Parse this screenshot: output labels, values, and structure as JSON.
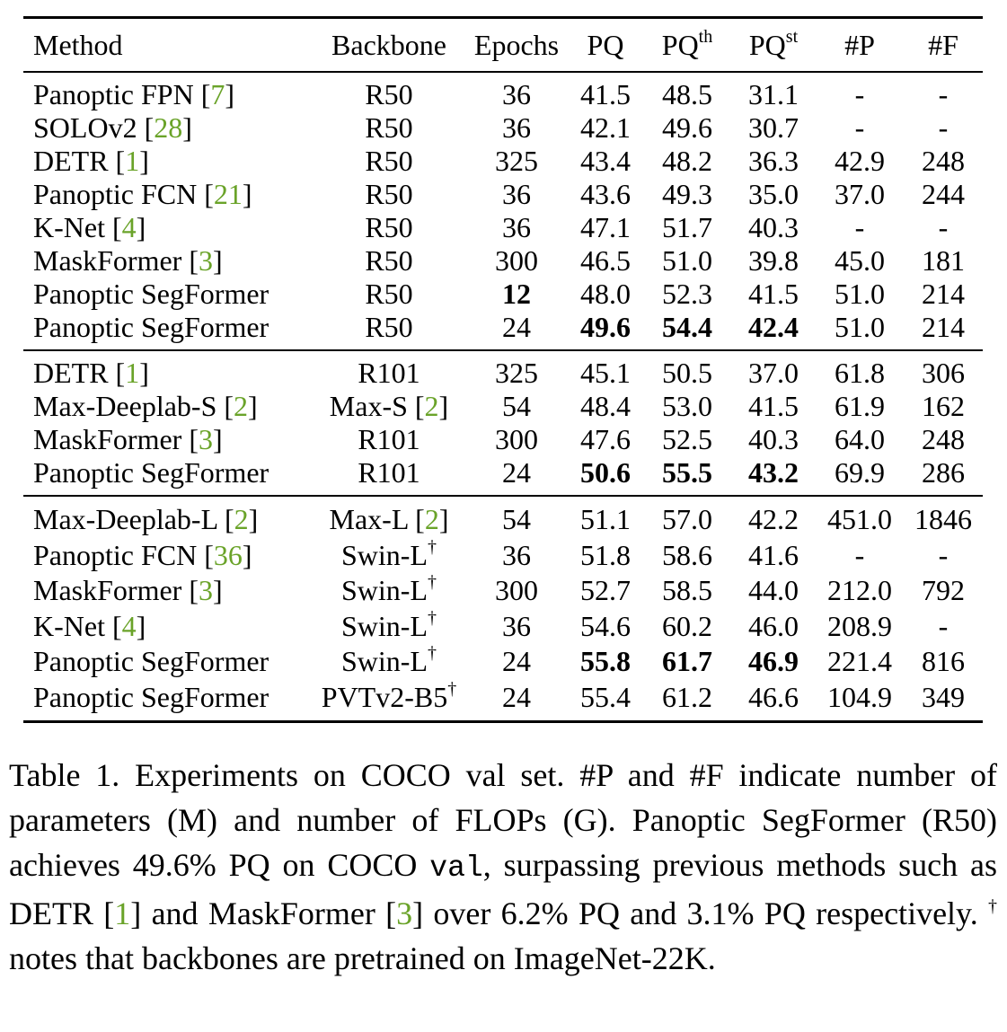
{
  "table": {
    "headers": {
      "method": "Method",
      "backbone": "Backbone",
      "epochs": "Epochs",
      "pq": "PQ",
      "pqth_base": "PQ",
      "pqth_sup": "th",
      "pqst_base": "PQ",
      "pqst_sup": "st",
      "params": "#P",
      "flops": "#F"
    },
    "sections": [
      {
        "rows": [
          {
            "method": "Panoptic FPN ",
            "ref": "7",
            "backbone": "R50",
            "epochs": "36",
            "pq": "41.5",
            "pqth": "48.5",
            "pqst": "31.1",
            "params": "-",
            "flops": "-"
          },
          {
            "method": "SOLOv2 ",
            "ref": "28",
            "backbone": "R50",
            "epochs": "36",
            "pq": "42.1",
            "pqth": "49.6",
            "pqst": "30.7",
            "params": "-",
            "flops": "-"
          },
          {
            "method": "DETR ",
            "ref": "1",
            "backbone": "R50",
            "epochs": "325",
            "pq": "43.4",
            "pqth": "48.2",
            "pqst": "36.3",
            "params": "42.9",
            "flops": "248"
          },
          {
            "method": "Panoptic FCN ",
            "ref": "21",
            "backbone": "R50",
            "epochs": "36",
            "pq": "43.6",
            "pqth": "49.3",
            "pqst": "35.0",
            "params": "37.0",
            "flops": "244"
          },
          {
            "method": "K-Net ",
            "ref": "4",
            "backbone": "R50",
            "epochs": "36",
            "pq": "47.1",
            "pqth": "51.7",
            "pqst": "40.3",
            "params": "-",
            "flops": "-"
          },
          {
            "method": "MaskFormer ",
            "ref": "3",
            "backbone": "R50",
            "epochs": "300",
            "pq": "46.5",
            "pqth": "51.0",
            "pqst": "39.8",
            "params": "45.0",
            "flops": "181"
          },
          {
            "method": "Panoptic SegFormer",
            "ref": "",
            "backbone": "R50",
            "epochs": "12",
            "pq": "48.0",
            "pqth": "52.3",
            "pqst": "41.5",
            "params": "51.0",
            "flops": "214"
          },
          {
            "method": "Panoptic SegFormer",
            "ref": "",
            "backbone": "R50",
            "epochs": "24",
            "pq": "49.6",
            "pqth": "54.4",
            "pqst": "42.4",
            "params": "51.0",
            "flops": "214"
          }
        ]
      },
      {
        "rows": [
          {
            "method": "DETR ",
            "ref": "1",
            "backbone": "R101",
            "epochs": "325",
            "pq": "45.1",
            "pqth": "50.5",
            "pqst": "37.0",
            "params": "61.8",
            "flops": "306"
          },
          {
            "method": "Max-Deeplab-S ",
            "ref": "2",
            "backbone": "Max-S ",
            "backbone_ref": "2",
            "epochs": "54",
            "pq": "48.4",
            "pqth": "53.0",
            "pqst": "41.5",
            "params": "61.9",
            "flops": "162"
          },
          {
            "method": "MaskFormer ",
            "ref": "3",
            "backbone": "R101",
            "epochs": "300",
            "pq": "47.6",
            "pqth": "52.5",
            "pqst": "40.3",
            "params": "64.0",
            "flops": "248"
          },
          {
            "method": "Panoptic SegFormer",
            "ref": "",
            "backbone": "R101",
            "epochs": "24",
            "pq": "50.6",
            "pqth": "55.5",
            "pqst": "43.2",
            "params": "69.9",
            "flops": "286"
          }
        ]
      },
      {
        "rows": [
          {
            "method": "Max-Deeplab-L ",
            "ref": "2",
            "backbone": "Max-L ",
            "backbone_ref": "2",
            "epochs": "54",
            "pq": "51.1",
            "pqth": "57.0",
            "pqst": "42.2",
            "params": "451.0",
            "flops": "1846"
          },
          {
            "method": "Panoptic FCN ",
            "ref": "36",
            "backbone": "Swin-L",
            "dagger": "†",
            "epochs": "36",
            "pq": "51.8",
            "pqth": "58.6",
            "pqst": "41.6",
            "params": "-",
            "flops": "-"
          },
          {
            "method": "MaskFormer ",
            "ref": "3",
            "backbone": "Swin-L",
            "dagger": "†",
            "epochs": "300",
            "pq": "52.7",
            "pqth": "58.5",
            "pqst": "44.0",
            "params": "212.0",
            "flops": "792"
          },
          {
            "method": "K-Net ",
            "ref": "4",
            "backbone": "Swin-L",
            "dagger": "†",
            "epochs": "36",
            "pq": "54.6",
            "pqth": "60.2",
            "pqst": "46.0",
            "params": "208.9",
            "flops": "-"
          },
          {
            "method": "Panoptic SegFormer",
            "ref": "",
            "backbone": "Swin-L",
            "dagger": "†",
            "epochs": "24",
            "pq": "55.8",
            "pqth": "61.7",
            "pqst": "46.9",
            "params": "221.4",
            "flops": "816"
          },
          {
            "method": "Panoptic SegFormer",
            "ref": "",
            "backbone": "PVTv2-B5",
            "dagger": "†",
            "epochs": "24",
            "pq": "55.4",
            "pqth": "61.2",
            "pqst": "46.6",
            "params": "104.9",
            "flops": "349"
          }
        ]
      }
    ],
    "bold_cells": [
      "0.6.epochs",
      "0.7.pq",
      "0.7.pqth",
      "0.7.pqst",
      "1.3.pq",
      "1.3.pqth",
      "1.3.pqst",
      "2.4.pq",
      "2.4.pqth",
      "2.4.pqst"
    ]
  },
  "caption": {
    "part1": "Table 1. Experiments on COCO val set. #P and #F indicate number of parameters (M) and number of FLOPs (G). Panoptic SegFormer (R50) achieves 49.6% PQ on COCO ",
    "code": "val",
    "part2": ", surpassing previous methods such as DETR [",
    "ref1": "1",
    "part3": "] and MaskFormer [",
    "ref2": "3",
    "part4": "] over 6.2% PQ and 3.1% PQ respectively. ",
    "dagger": "†",
    "part5": " notes that backbones are pretrained on ImageNet-22K."
  },
  "colors": {
    "citation": "#6aa329",
    "text": "#000000"
  }
}
